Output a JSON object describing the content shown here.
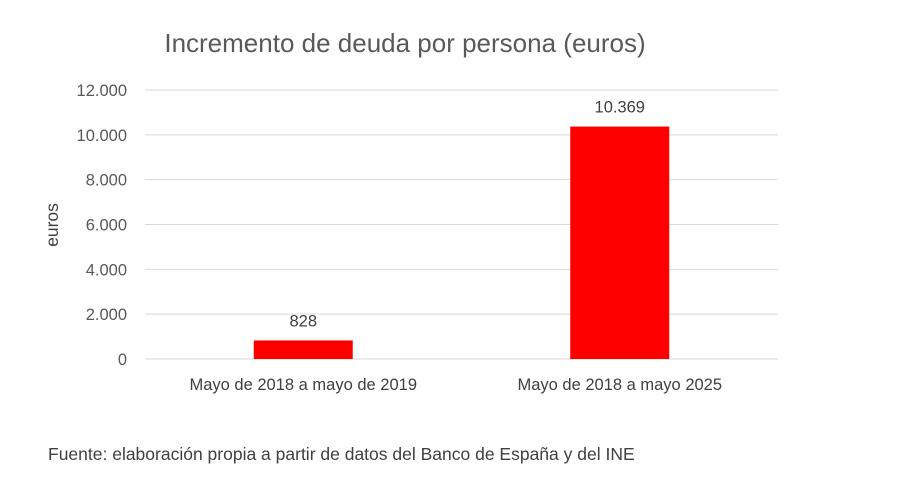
{
  "chart_data": {
    "type": "bar",
    "title": "Incremento de deuda por persona (euros)",
    "xlabel": "",
    "ylabel": "euros",
    "categories": [
      "Mayo de 2018 a mayo de 2019",
      "Mayo de 2018 a mayo 2025"
    ],
    "values": [
      828,
      10369
    ],
    "data_labels": [
      "828",
      "10.369"
    ],
    "ylim": [
      0,
      12000
    ],
    "yticks": [
      0,
      2000,
      4000,
      6000,
      8000,
      10000,
      12000
    ],
    "ytick_labels": [
      "0",
      "2.000",
      "4.000",
      "6.000",
      "8.000",
      "10.000",
      "12.000"
    ],
    "grid": true,
    "legend": "none",
    "bar_color": "#ff0000",
    "grid_color": "#d9d9d9"
  },
  "source": "Fuente: elaboración propia a partir de datos del Banco de España y del INE"
}
